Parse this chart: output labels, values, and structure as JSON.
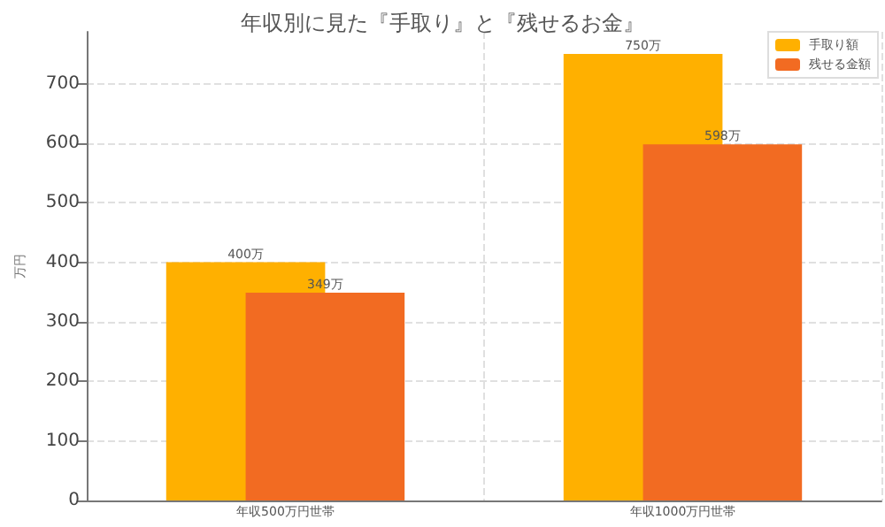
{
  "chart_data": {
    "type": "bar",
    "title": "年収別に見た『手取り』と『残せるお金』",
    "ylabel": "万円",
    "categories": [
      "年収500万円世帯",
      "年収1000万円世帯"
    ],
    "series": [
      {
        "name": "手取り額",
        "color": "#ffb000",
        "values": [
          400,
          750
        ],
        "value_labels": [
          "400万",
          "750万"
        ]
      },
      {
        "name": "残せる金額",
        "color": "#f26b22",
        "values": [
          349,
          598
        ],
        "value_labels": [
          "349万",
          "598万"
        ]
      }
    ],
    "ylim": [
      0,
      787
    ],
    "yticks": [
      0,
      100,
      200,
      300,
      400,
      500,
      600,
      700
    ],
    "grid": true,
    "legend": "top right"
  }
}
